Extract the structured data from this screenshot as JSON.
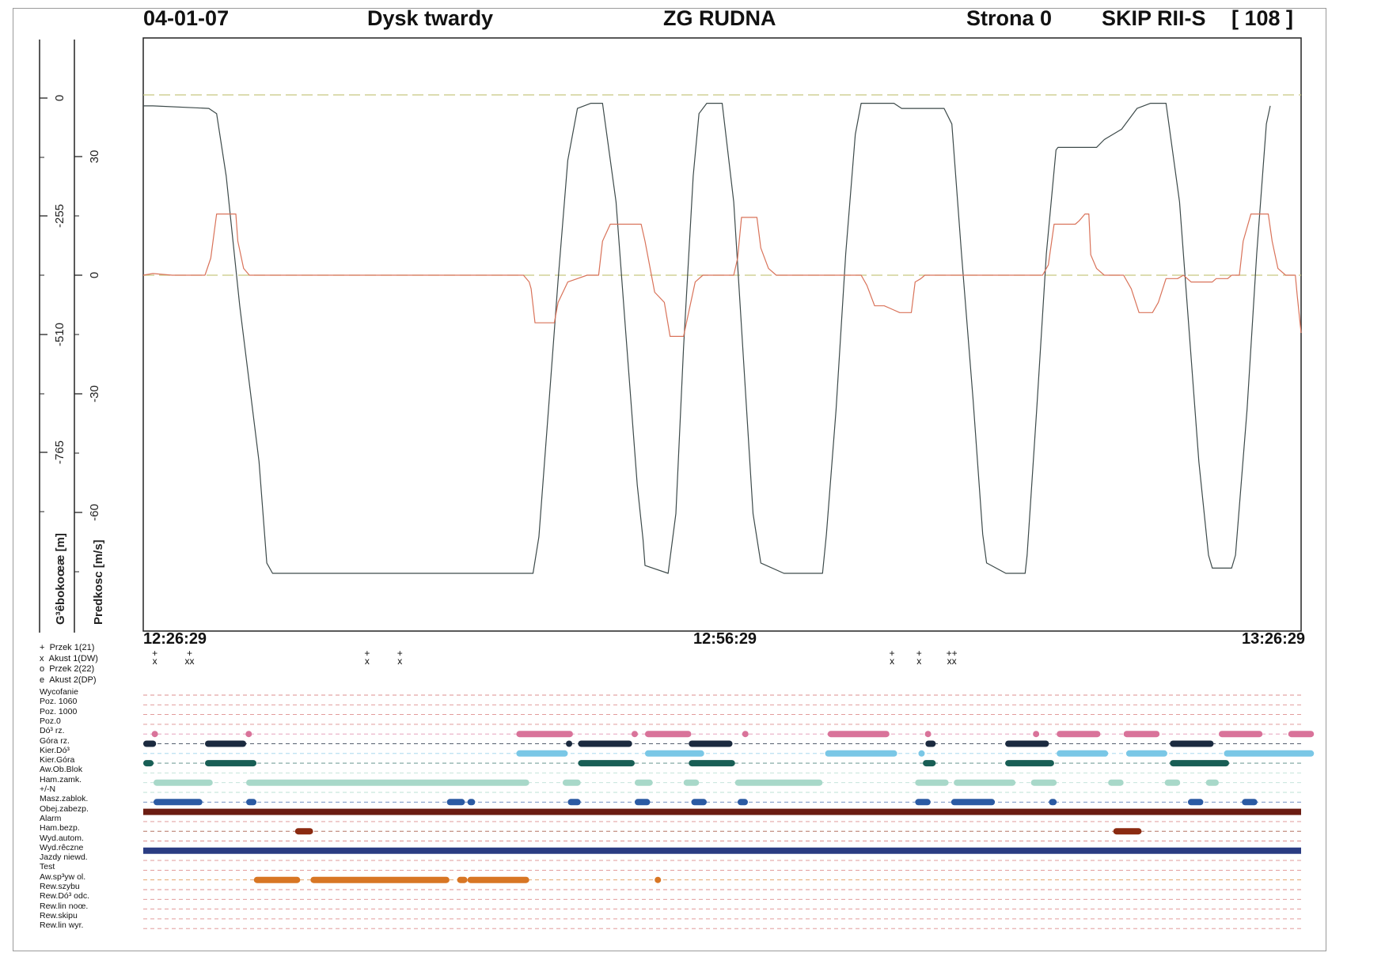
{
  "header": {
    "date": "04-01-07",
    "source": "Dysk twardy",
    "mine": "ZG RUDNA",
    "page": "Strona 0",
    "shaft": "SKIP RII-S",
    "index": "[ 108 ]"
  },
  "axes": {
    "depth_title": "G³êbokoœæ [m]",
    "speed_title": "Predkosc [m/s]",
    "depth_ticks": [
      "0",
      "-255",
      "-510",
      "-765"
    ],
    "speed_ticks": [
      "30",
      "0",
      "-30",
      "-60"
    ]
  },
  "time_axis": {
    "start": "12:26:29",
    "middle": "12:56:29",
    "end": "13:26:29"
  },
  "legend": [
    {
      "symbol": "+",
      "label": "Przek 1(21)"
    },
    {
      "symbol": "x",
      "label": "Akust 1(DW)"
    },
    {
      "symbol": "o",
      "label": "Przek 2(22)"
    },
    {
      "symbol": "e",
      "label": "Akust 2(DP)"
    }
  ],
  "event_marks": [
    {
      "t": 0.6,
      "text": "+\nx"
    },
    {
      "t": 2.4,
      "text": "+\nxx"
    },
    {
      "t": 11.6,
      "text": "+\nx"
    },
    {
      "t": 13.3,
      "text": "+\nx"
    },
    {
      "t": 38.8,
      "text": "+\nx"
    },
    {
      "t": 40.2,
      "text": "+\nx"
    },
    {
      "t": 41.9,
      "text": "++\nxx"
    }
  ],
  "lanes": [
    {
      "label": "Wycofanie",
      "color": "#d46a6a",
      "bars": []
    },
    {
      "label": "Poz. 1060",
      "color": "#d46a6a",
      "bars": []
    },
    {
      "label": "Poz. 1000",
      "color": "#d46a6a",
      "bars": []
    },
    {
      "label": "Poz.0",
      "color": "#d46a6a",
      "bars": []
    },
    {
      "label": "Dó³ rz.",
      "color": "#d9739a",
      "bars": [
        [
          0.4,
          0.5
        ],
        [
          4.0,
          4.2
        ],
        [
          14.5,
          16.7
        ],
        [
          19.0,
          19.2
        ],
        [
          19.5,
          21.3
        ],
        [
          23.3,
          23.5
        ],
        [
          26.6,
          29.0
        ],
        [
          30.4,
          30.6
        ],
        [
          34.6,
          34.8
        ],
        [
          35.5,
          37.2
        ],
        [
          38.1,
          39.5
        ],
        [
          41.8,
          43.5
        ],
        [
          44.5,
          45.5
        ]
      ]
    },
    {
      "label": "Góra rz.",
      "color": "#1b2a3f",
      "bars": [
        [
          0,
          0.5
        ],
        [
          2.4,
          4.0
        ],
        [
          16.5,
          16.6
        ],
        [
          16.9,
          19.0
        ],
        [
          21.2,
          22.9
        ],
        [
          30.4,
          30.8
        ],
        [
          33.5,
          35.2
        ],
        [
          39.9,
          41.6
        ]
      ]
    },
    {
      "label": "Kier.Dó³",
      "color": "#7ac7e6",
      "bars": [
        [
          14.5,
          16.5
        ],
        [
          19.5,
          21.8
        ],
        [
          26.5,
          29.3
        ],
        [
          30.2,
          30.3
        ],
        [
          35.5,
          37.5
        ],
        [
          38.2,
          39.8
        ],
        [
          42.0,
          45.5
        ]
      ]
    },
    {
      "label": "Kier.Góra",
      "color": "#185e55",
      "bars": [
        [
          0,
          0.4
        ],
        [
          2.4,
          4.4
        ],
        [
          16.9,
          19.1
        ],
        [
          21.2,
          23.0
        ],
        [
          30.3,
          30.8
        ],
        [
          33.5,
          35.4
        ],
        [
          39.9,
          42.2
        ]
      ]
    },
    {
      "label": "Aw.Ob.Blok",
      "color": "#a8d8c9",
      "bars": []
    },
    {
      "label": "Ham.zamk.",
      "color": "#a8d8c9",
      "bars": [
        [
          0.4,
          2.7
        ],
        [
          4.0,
          15.0
        ],
        [
          16.3,
          17.0
        ],
        [
          19.1,
          19.8
        ],
        [
          21.0,
          21.6
        ],
        [
          23.0,
          26.4
        ],
        [
          30.0,
          31.3
        ],
        [
          31.5,
          33.9
        ],
        [
          34.5,
          35.5
        ],
        [
          37.5,
          38.1
        ],
        [
          39.7,
          40.3
        ],
        [
          41.3,
          41.8
        ]
      ]
    },
    {
      "label": "+/-N",
      "color": "#a8d8c9",
      "bars": []
    },
    {
      "label": "Masz.zablok.",
      "color": "#2b5aa3",
      "bars": [
        [
          0.4,
          2.3
        ],
        [
          4.0,
          4.4
        ],
        [
          11.8,
          12.5
        ],
        [
          12.6,
          12.9
        ],
        [
          16.5,
          17.0
        ],
        [
          19.1,
          19.7
        ],
        [
          21.3,
          21.9
        ],
        [
          23.1,
          23.5
        ],
        [
          30.0,
          30.6
        ],
        [
          31.4,
          33.1
        ],
        [
          35.2,
          35.5
        ],
        [
          40.6,
          41.2
        ],
        [
          42.7,
          43.3
        ]
      ]
    },
    {
      "label": "Obej.zabezp.",
      "color": "#6b1c12",
      "bars": [
        [
          0,
          45
        ]
      ]
    },
    {
      "label": "Alarm",
      "color": "#d46a6a",
      "bars": []
    },
    {
      "label": "Ham.bezp.",
      "color": "#8a2a10",
      "bars": [
        [
          5.9,
          6.6
        ],
        [
          37.7,
          38.8
        ]
      ]
    },
    {
      "label": "Wyd.autom.",
      "color": "#d46a6a",
      "bars": []
    },
    {
      "label": "Wyd.rêczne",
      "color": "#2a3c82",
      "bars": [
        [
          0,
          45
        ]
      ]
    },
    {
      "label": "Jazdy niewd.",
      "color": "#d46a6a",
      "bars": []
    },
    {
      "label": "Test",
      "color": "#d46a6a",
      "bars": []
    },
    {
      "label": "Aw.sp³yw ol.",
      "color": "#d87624",
      "bars": [
        [
          4.3,
          6.1
        ],
        [
          6.5,
          11.9
        ],
        [
          12.2,
          12.6
        ],
        [
          12.6,
          15.0
        ],
        [
          19.9,
          20.1
        ]
      ]
    },
    {
      "label": "Rew.szybu",
      "color": "#d46a6a",
      "bars": []
    },
    {
      "label": "Rew.Dó³ odc.",
      "color": "#d46a6a",
      "bars": []
    },
    {
      "label": "Rew.lin noœ.",
      "color": "#d46a6a",
      "bars": []
    },
    {
      "label": "Rew.skipu",
      "color": "#d46a6a",
      "bars": []
    },
    {
      "label": "Rew.lin wyr.",
      "color": "#d46a6a",
      "bars": []
    }
  ],
  "chart_data": {
    "type": "line",
    "x_unit": "min",
    "x_range": [
      0,
      60
    ],
    "xtick_labels": [
      "12:26:29",
      "12:56:29",
      "13:26:29"
    ],
    "series": [
      {
        "color": "#3d4a4a",
        "axis": "depth",
        "points": [
          [
            0,
            -15
          ],
          [
            0.5,
            -15
          ],
          [
            3.4,
            -20
          ],
          [
            3.8,
            -30
          ],
          [
            4.3,
            -150
          ],
          [
            5.0,
            -400
          ],
          [
            6.0,
            -700
          ],
          [
            6.4,
            -895
          ],
          [
            6.7,
            -915
          ],
          [
            8.0,
            -915
          ],
          [
            20.2,
            -915
          ],
          [
            20.5,
            -845
          ],
          [
            21.0,
            -600
          ],
          [
            21.5,
            -350
          ],
          [
            22.0,
            -120
          ],
          [
            22.5,
            -20
          ],
          [
            23.2,
            -10
          ],
          [
            23.8,
            -10
          ],
          [
            24.5,
            -200
          ],
          [
            25.0,
            -450
          ],
          [
            25.6,
            -745
          ],
          [
            25.9,
            -850
          ],
          [
            26.0,
            -900
          ],
          [
            27.2,
            -915
          ],
          [
            27.6,
            -800
          ],
          [
            28.0,
            -480
          ],
          [
            28.5,
            -150
          ],
          [
            28.8,
            -30
          ],
          [
            29.2,
            -10
          ],
          [
            30.0,
            -10
          ],
          [
            30.6,
            -200
          ],
          [
            31.1,
            -500
          ],
          [
            31.6,
            -800
          ],
          [
            32.0,
            -895
          ],
          [
            33.2,
            -915
          ],
          [
            35.2,
            -915
          ],
          [
            35.4,
            -840
          ],
          [
            35.9,
            -600
          ],
          [
            36.4,
            -300
          ],
          [
            36.9,
            -70
          ],
          [
            37.2,
            -10
          ],
          [
            38.9,
            -10
          ],
          [
            39.3,
            -20
          ],
          [
            41.5,
            -20
          ],
          [
            41.9,
            -50
          ],
          [
            42.4,
            -300
          ],
          [
            43.0,
            -580
          ],
          [
            43.5,
            -840
          ],
          [
            43.7,
            -895
          ],
          [
            44.7,
            -915
          ],
          [
            45.7,
            -915
          ],
          [
            45.8,
            -880
          ],
          [
            46.3,
            -600
          ],
          [
            46.8,
            -300
          ],
          [
            47.3,
            -100
          ],
          [
            47.4,
            -95
          ],
          [
            49.4,
            -95
          ],
          [
            49.8,
            -80
          ],
          [
            50.7,
            -60
          ],
          [
            51.5,
            -20
          ],
          [
            52.2,
            -10
          ],
          [
            53.0,
            -10
          ],
          [
            53.7,
            -200
          ],
          [
            54.2,
            -450
          ],
          [
            54.7,
            -700
          ],
          [
            55.2,
            -880
          ],
          [
            55.4,
            -905
          ],
          [
            56.4,
            -905
          ],
          [
            56.6,
            -880
          ],
          [
            57.2,
            -600
          ],
          [
            57.7,
            -300
          ],
          [
            58.2,
            -50
          ],
          [
            58.4,
            -15
          ]
        ]
      },
      {
        "color": "#d9735a",
        "axis": "speed",
        "points": [
          [
            0,
            0
          ],
          [
            0.5,
            0.5
          ],
          [
            1.5,
            0
          ],
          [
            3.2,
            0
          ],
          [
            3.5,
            5
          ],
          [
            3.8,
            18
          ],
          [
            4.8,
            18
          ],
          [
            4.9,
            10
          ],
          [
            5.2,
            2
          ],
          [
            5.5,
            0
          ],
          [
            19.7,
            0
          ],
          [
            20.0,
            -2
          ],
          [
            20.1,
            -4
          ],
          [
            20.3,
            -14
          ],
          [
            21.3,
            -14
          ],
          [
            21.5,
            -8
          ],
          [
            22.0,
            -2
          ],
          [
            22.5,
            -1
          ],
          [
            23.0,
            0
          ],
          [
            23.6,
            0
          ],
          [
            23.8,
            10
          ],
          [
            24.2,
            15
          ],
          [
            25.8,
            15
          ],
          [
            26.0,
            10
          ],
          [
            26.5,
            -5
          ],
          [
            27.0,
            -8
          ],
          [
            27.3,
            -18
          ],
          [
            28.0,
            -18
          ],
          [
            28.3,
            -10
          ],
          [
            28.6,
            -2
          ],
          [
            29.0,
            0
          ],
          [
            30.6,
            0
          ],
          [
            30.8,
            5
          ],
          [
            31.0,
            17
          ],
          [
            31.8,
            17
          ],
          [
            32.0,
            8
          ],
          [
            32.4,
            2
          ],
          [
            32.8,
            0
          ],
          [
            37.2,
            0
          ],
          [
            37.5,
            -3
          ],
          [
            37.9,
            -9
          ],
          [
            38.4,
            -9
          ],
          [
            38.8,
            -10
          ],
          [
            39.2,
            -11
          ],
          [
            39.8,
            -11
          ],
          [
            40.0,
            -2
          ],
          [
            40.3,
            -1
          ],
          [
            40.5,
            0
          ],
          [
            46.6,
            0
          ],
          [
            46.9,
            3
          ],
          [
            47.2,
            15
          ],
          [
            48.3,
            15
          ],
          [
            48.5,
            16
          ],
          [
            48.8,
            18
          ],
          [
            49.0,
            18
          ],
          [
            49.1,
            6
          ],
          [
            49.4,
            2
          ],
          [
            49.8,
            0
          ],
          [
            50.8,
            0
          ],
          [
            51.2,
            -4
          ],
          [
            51.6,
            -11
          ],
          [
            52.3,
            -11
          ],
          [
            52.6,
            -8
          ],
          [
            53.0,
            -1
          ],
          [
            53.6,
            -1
          ],
          [
            53.9,
            0
          ],
          [
            54.3,
            -2
          ],
          [
            55.4,
            -2
          ],
          [
            55.6,
            -1
          ],
          [
            56.2,
            -1
          ],
          [
            56.4,
            0
          ],
          [
            56.8,
            0
          ],
          [
            57.0,
            10
          ],
          [
            57.4,
            18
          ],
          [
            58.3,
            18
          ],
          [
            58.5,
            10
          ],
          [
            58.8,
            2
          ],
          [
            59.2,
            0
          ],
          [
            59.7,
            0
          ],
          [
            59.8,
            -6
          ],
          [
            60.0,
            -17
          ],
          [
            60.7,
            -17
          ],
          [
            60.8,
            -10
          ],
          [
            61.3,
            -1
          ],
          [
            61.9,
            0
          ]
        ]
      }
    ],
    "depth_axis": {
      "title": "G³êbokoœæ [m]",
      "range": [
        -1020,
        0
      ],
      "ticks": [
        0,
        -255,
        -510,
        -765
      ]
    },
    "speed_axis": {
      "title": "Predkosc [m/s]",
      "range": [
        -90,
        30
      ],
      "ticks": [
        30,
        0,
        -30,
        -60
      ]
    },
    "reference_lines": [
      {
        "axis": "depth",
        "value": 0,
        "color": "#c8c880",
        "style": "dashed"
      },
      {
        "axis": "speed",
        "value": 0,
        "color": "#c8c880",
        "style": "dashed"
      }
    ]
  }
}
